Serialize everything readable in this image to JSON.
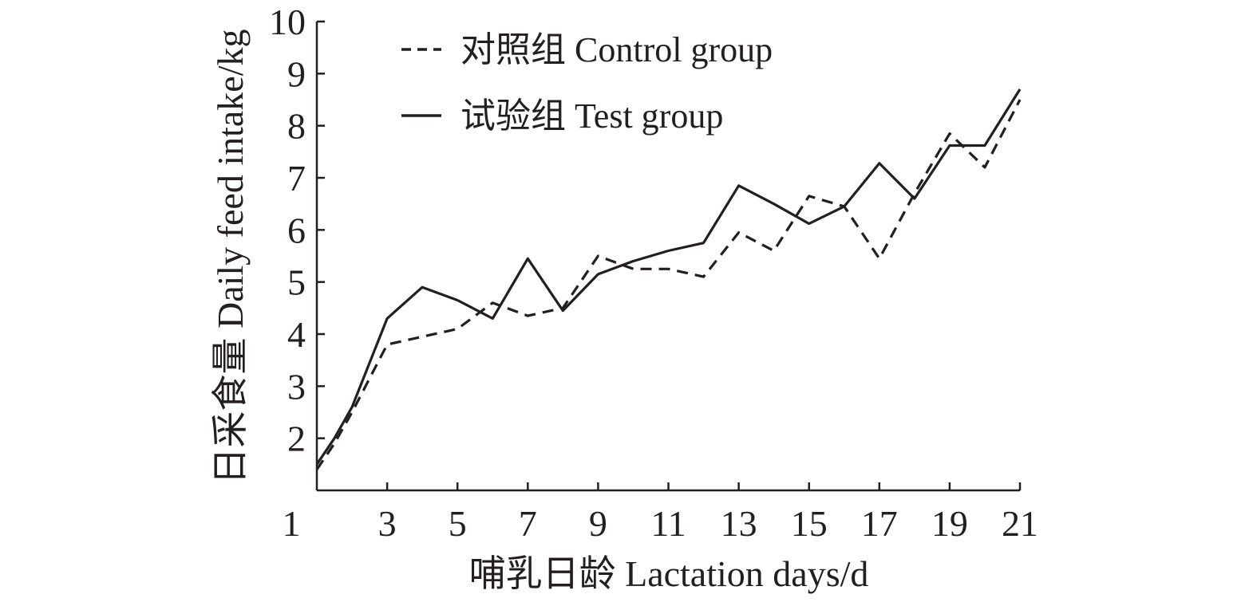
{
  "chart_data": {
    "type": "line",
    "xlabel": "哺乳日龄 Lactation days/d",
    "ylabel": "日采食量 Daily feed intake/kg",
    "xlim": [
      1,
      21
    ],
    "ylim": [
      1,
      10
    ],
    "x_ticks": [
      1,
      3,
      5,
      7,
      9,
      11,
      13,
      15,
      17,
      19,
      21
    ],
    "y_ticks": [
      2,
      3,
      4,
      5,
      6,
      7,
      8,
      9,
      10
    ],
    "grid": false,
    "legend": "top-left",
    "x": [
      1,
      1.5,
      2,
      3,
      4,
      5,
      6,
      7,
      8,
      9,
      10,
      11,
      12,
      13,
      14,
      15,
      16,
      17,
      18,
      19,
      20,
      21
    ],
    "series": [
      {
        "name": "对照组 Control group",
        "style": "dashed",
        "color": "#231f20",
        "values": [
          1.4,
          1.9,
          2.5,
          3.8,
          3.95,
          4.1,
          4.6,
          4.35,
          4.5,
          5.5,
          5.25,
          5.25,
          5.1,
          5.95,
          5.6,
          6.65,
          6.45,
          5.45,
          6.7,
          7.85,
          7.2,
          8.5
        ]
      },
      {
        "name": "试验组 Test group",
        "style": "solid",
        "color": "#231f20",
        "values": [
          1.5,
          2.0,
          2.6,
          4.3,
          4.9,
          4.65,
          4.3,
          5.45,
          4.45,
          5.15,
          5.4,
          5.6,
          5.75,
          6.85,
          6.5,
          6.12,
          6.45,
          7.28,
          6.6,
          7.62,
          7.62,
          8.7
        ]
      }
    ]
  }
}
